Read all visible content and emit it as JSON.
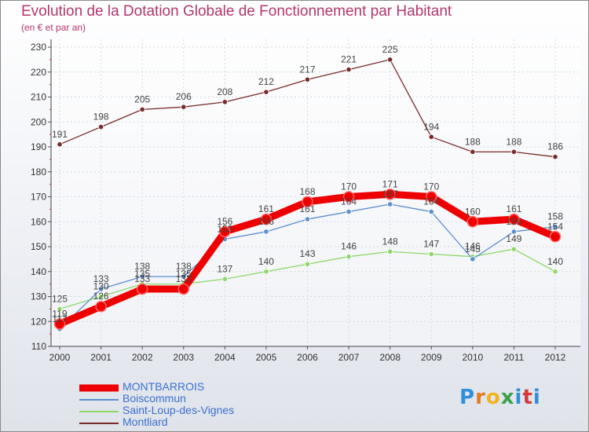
{
  "title": "Evolution de la Dotation Globale de Fonctionnement par Habitant",
  "subtitle": "(en € et par an)",
  "logo": "Proxiti",
  "chart_data": {
    "type": "line",
    "title": "Evolution de la Dotation Globale de Fonctionnement par Habitant",
    "subtitle": "(en € et par an)",
    "xlabel": "",
    "ylabel": "",
    "x": [
      "2000",
      "2001",
      "2002",
      "2003",
      "2004",
      "2005",
      "2006",
      "2007",
      "2008",
      "2009",
      "2010",
      "2011",
      "2012"
    ],
    "ylim": [
      110,
      230
    ],
    "yticks": [
      110,
      120,
      130,
      140,
      150,
      160,
      170,
      180,
      190,
      200,
      210,
      220,
      230
    ],
    "grid": true,
    "legend_position": "bottom-left",
    "series": [
      {
        "name": "MONTBARROIS",
        "color": "#ee0000",
        "values": [
          119,
          126,
          133,
          133,
          156,
          161,
          168,
          170,
          171,
          170,
          160,
          161,
          154
        ]
      },
      {
        "name": "Boiscommun",
        "color": "#5b8ed0",
        "values": [
          117,
          133,
          138,
          138,
          153,
          156,
          161,
          164,
          167,
          164,
          145,
          156,
          158
        ]
      },
      {
        "name": "Saint-Loup-des-Vignes",
        "color": "#8ed86a",
        "values": [
          125,
          130,
          135,
          135,
          137,
          140,
          143,
          146,
          148,
          147,
          146,
          149,
          140
        ]
      },
      {
        "name": "Montliard",
        "color": "#7a2a2a",
        "values": [
          191,
          198,
          205,
          206,
          208,
          212,
          217,
          221,
          225,
          194,
          188,
          188,
          186
        ]
      }
    ]
  }
}
